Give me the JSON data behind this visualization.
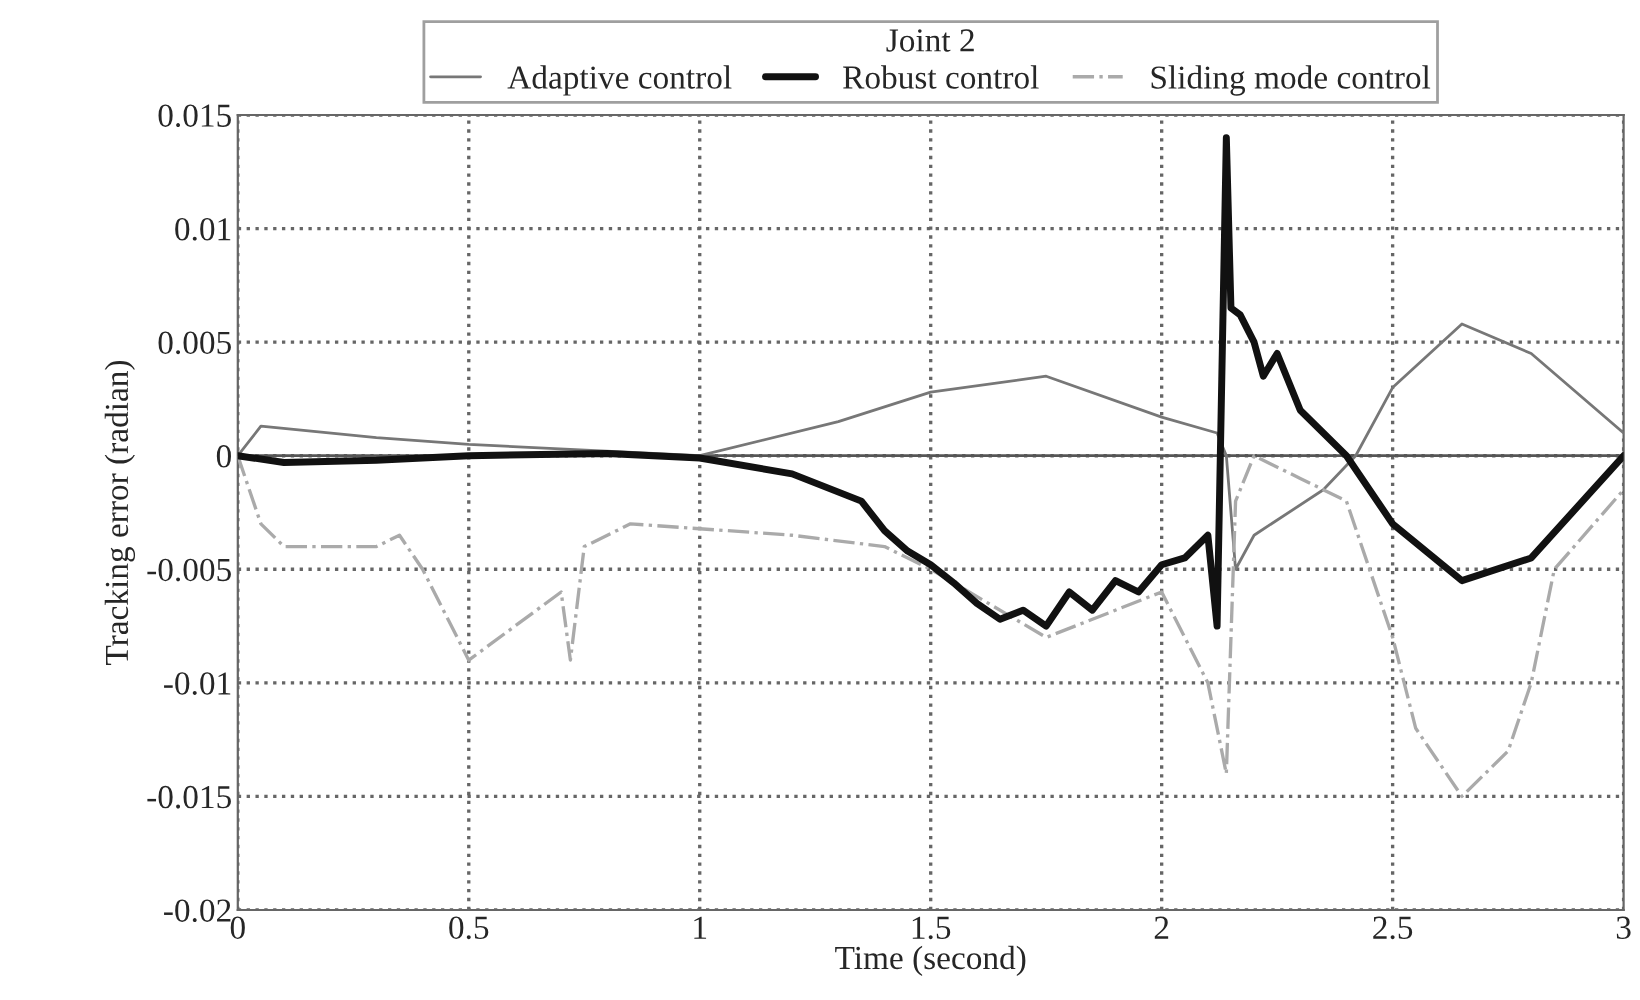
{
  "chart_data": {
    "type": "line",
    "xlabel": "Time (second)",
    "ylabel": "Tracking error (radian)",
    "legend_title": "Joint 2",
    "legend": "top",
    "xlim": [
      0,
      3
    ],
    "xticks": [
      0,
      0.5,
      1,
      1.5,
      2,
      2.5,
      3
    ],
    "ylim": [
      -0.02,
      0.015
    ],
    "yticks": [
      {
        "value": -0.02,
        "label": "-0.02"
      },
      {
        "value": -0.015,
        "label": "-0.015"
      },
      {
        "value": -0.01,
        "label": "-0.01"
      },
      {
        "value": -0.005,
        "label": "-0.005"
      },
      0,
      0.005,
      0.01,
      0.015
    ],
    "grid": true,
    "ref_lines": [
      {
        "axis": "y",
        "value": 0,
        "color": "#555555",
        "line_style": "solid"
      }
    ],
    "series": [
      {
        "name": "Adaptive control",
        "color": "#777777",
        "line_style": "solid",
        "x": [
          0,
          0.05,
          0.3,
          0.5,
          1.0,
          1.3,
          1.5,
          1.75,
          2.0,
          2.12,
          2.14,
          2.16,
          2.2,
          2.35,
          2.42,
          2.5,
          2.65,
          2.8,
          3.0
        ],
        "values": [
          0,
          0.0013,
          0.0008,
          0.0005,
          0.0,
          0.0015,
          0.0028,
          0.0035,
          0.0017,
          0.001,
          0.0,
          -0.005,
          -0.0035,
          -0.0015,
          0.0,
          0.003,
          0.0058,
          0.0045,
          0.001
        ]
      },
      {
        "name": "Robust control",
        "color": "#111111",
        "line_style": "solid",
        "x": [
          0,
          0.1,
          0.3,
          0.5,
          0.8,
          1.0,
          1.2,
          1.35,
          1.4,
          1.45,
          1.5,
          1.55,
          1.6,
          1.65,
          1.7,
          1.75,
          1.8,
          1.85,
          1.9,
          1.95,
          2.0,
          2.05,
          2.1,
          2.12,
          2.14,
          2.15,
          2.17,
          2.2,
          2.22,
          2.25,
          2.3,
          2.35,
          2.4,
          2.5,
          2.65,
          2.8,
          3.0
        ],
        "values": [
          0,
          -0.0003,
          -0.0002,
          0,
          0.0001,
          -0.0001,
          -0.0008,
          -0.002,
          -0.0033,
          -0.0042,
          -0.0048,
          -0.0056,
          -0.0065,
          -0.0072,
          -0.0068,
          -0.0075,
          -0.006,
          -0.0068,
          -0.0055,
          -0.006,
          -0.0048,
          -0.0045,
          -0.0035,
          -0.0075,
          0.014,
          0.0065,
          0.0062,
          0.005,
          0.0035,
          0.0045,
          0.002,
          0.001,
          0.0,
          -0.003,
          -0.0055,
          -0.0045,
          0.0
        ]
      },
      {
        "name": "Sliding mode control",
        "color": "#aaaaaa",
        "line_style": "dashdot",
        "x": [
          0,
          0.05,
          0.1,
          0.3,
          0.35,
          0.4,
          0.5,
          0.6,
          0.7,
          0.72,
          0.75,
          0.85,
          1.2,
          1.4,
          1.5,
          1.75,
          2.0,
          2.1,
          2.14,
          2.16,
          2.2,
          2.3,
          2.4,
          2.45,
          2.5,
          2.55,
          2.65,
          2.75,
          2.8,
          2.85,
          3.0
        ],
        "values": [
          0,
          -0.003,
          -0.004,
          -0.004,
          -0.0035,
          -0.005,
          -0.009,
          -0.0075,
          -0.006,
          -0.009,
          -0.004,
          -0.003,
          -0.0035,
          -0.004,
          -0.005,
          -0.008,
          -0.006,
          -0.01,
          -0.014,
          -0.002,
          0.0,
          -0.001,
          -0.002,
          -0.005,
          -0.008,
          -0.012,
          -0.015,
          -0.013,
          -0.01,
          -0.005,
          -0.0015
        ]
      }
    ]
  }
}
